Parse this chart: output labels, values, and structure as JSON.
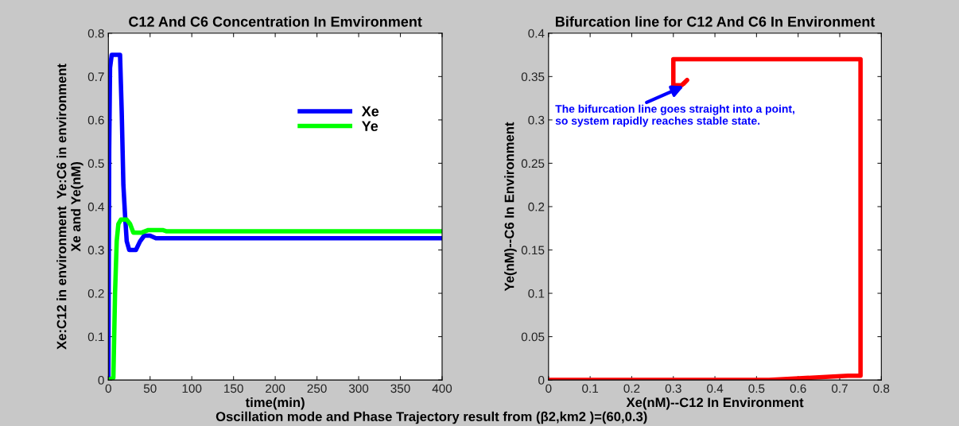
{
  "chart_data": [
    {
      "type": "line",
      "title": "C12 And C6 Concentration In Emvironment",
      "xlabel": "time(min)",
      "ylabel": "Xe:C12 in environment  Ye:C6 in environment\nXe and Ye(nM)",
      "xlim": [
        0,
        400
      ],
      "xticks": [
        0,
        50,
        100,
        150,
        200,
        250,
        300,
        350,
        400
      ],
      "ylim": [
        0,
        0.8
      ],
      "yticks": [
        0,
        0.1,
        0.2,
        0.3,
        0.4,
        0.5,
        0.6,
        0.7,
        0.8
      ],
      "legend": "right",
      "grid": false,
      "marker": "none",
      "line_style": "solid",
      "series": [
        {
          "name": "Xe",
          "color": "#0000ff",
          "x": [
            0,
            1,
            2,
            4,
            14,
            16,
            18,
            20,
            22,
            25,
            33,
            38,
            43,
            50,
            57,
            400
          ],
          "values": [
            0,
            0.53,
            0.72,
            0.75,
            0.75,
            0.62,
            0.45,
            0.38,
            0.32,
            0.3,
            0.3,
            0.32,
            0.333,
            0.333,
            0.327,
            0.327
          ]
        },
        {
          "name": "Ye",
          "color": "#00ff00",
          "x": [
            0,
            6,
            8,
            10,
            12,
            15,
            22,
            26,
            30,
            40,
            48,
            65,
            70,
            400
          ],
          "values": [
            0,
            0.005,
            0.2,
            0.32,
            0.36,
            0.37,
            0.37,
            0.36,
            0.34,
            0.34,
            0.346,
            0.346,
            0.343,
            0.343
          ]
        }
      ],
      "annotations": [
        "Oscillation mode and Phase Trajectory result from (β2,km2 )=(60,0.3)"
      ]
    },
    {
      "type": "line",
      "title": "Bifurcation line for C12 And C6 In Environment",
      "xlabel": "Xe(nM)--C12 In Environment",
      "ylabel": "Ye(nM)--C6 In Environment",
      "xlim": [
        0,
        0.8
      ],
      "xticks": [
        0,
        0.1,
        0.2,
        0.3,
        0.4,
        0.5,
        0.6,
        0.7,
        0.8
      ],
      "ylim": [
        0,
        0.4
      ],
      "yticks": [
        0,
        0.05,
        0.1,
        0.15,
        0.2,
        0.25,
        0.3,
        0.35,
        0.4
      ],
      "grid": false,
      "marker": "none",
      "line_style": "solid",
      "series": [
        {
          "color": "#ff0000",
          "x": [
            0,
            0.53,
            0.72,
            0.75,
            0.75,
            0.75,
            0.75,
            0.62,
            0.38,
            0.32,
            0.3,
            0.3,
            0.3,
            0.32,
            0.333,
            0.327
          ],
          "values": [
            0,
            0,
            0.005,
            0.005,
            0.2,
            0.36,
            0.37,
            0.37,
            0.37,
            0.37,
            0.37,
            0.36,
            0.34,
            0.34,
            0.346,
            0.343
          ]
        }
      ],
      "annotations": [
        {
          "text": "The bifurcation line goes straight into a point,\nso system rapidly reaches stable state.",
          "x": 0.33,
          "y": 0.34
        }
      ]
    }
  ]
}
